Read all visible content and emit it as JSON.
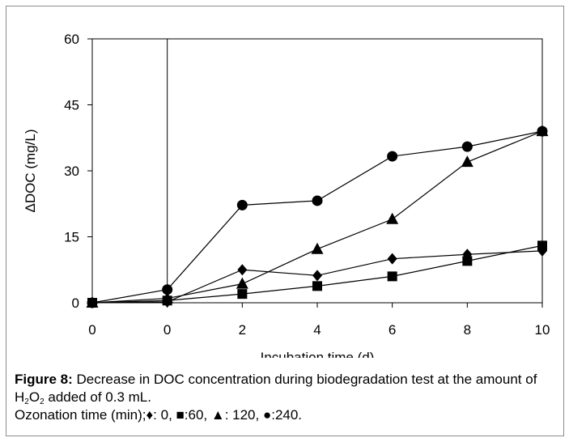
{
  "chart_data": {
    "type": "line",
    "title": "",
    "xlabel": "Incubation time (d)",
    "ylabel": "ΔDOC (mg/L)",
    "x_tick_labels": [
      "0",
      "0",
      "2",
      "4",
      "6",
      "8",
      "10"
    ],
    "ylim": [
      0,
      60
    ],
    "y_ticks": [
      0,
      15,
      30,
      45,
      60
    ],
    "grid": false,
    "legend": "none (series identified in caption)",
    "vertical_reference_line_at_tick_index": 1,
    "series": [
      {
        "marker": "diamond",
        "ozonation_min": 0,
        "x_tick_index": [
          0,
          1,
          2,
          3,
          4,
          5,
          6
        ],
        "values": [
          0,
          0.2,
          7.5,
          6.2,
          10.0,
          11.0,
          11.8
        ]
      },
      {
        "marker": "square",
        "ozonation_min": 60,
        "x_tick_index": [
          0,
          1,
          2,
          3,
          4,
          5,
          6
        ],
        "values": [
          0,
          0.5,
          2.0,
          3.8,
          6.0,
          9.5,
          13.0
        ]
      },
      {
        "marker": "triangle",
        "ozonation_min": 120,
        "x_tick_index": [
          0,
          1,
          2,
          3,
          4,
          5,
          6
        ],
        "values": [
          0,
          1.0,
          4.3,
          12.2,
          19.0,
          32.0,
          39.0
        ]
      },
      {
        "marker": "circle",
        "ozonation_min": 240,
        "x_tick_index": [
          0,
          1,
          2,
          3,
          4,
          5,
          6
        ],
        "values": [
          0,
          3.0,
          22.2,
          23.2,
          33.3,
          35.5,
          39.0
        ]
      }
    ]
  },
  "caption": {
    "figure_label": "Figure 8:",
    "text_part1": " Decrease in DOC concentration during biodegradation test at the amount of H",
    "sub_1": "2",
    "text_part2": "O",
    "sub_2": "2",
    "text_part3": " added of 0.3 mL.",
    "line2": "Ozonation time (min);♦: 0, ■:60, ▲: 120, ●:240."
  }
}
